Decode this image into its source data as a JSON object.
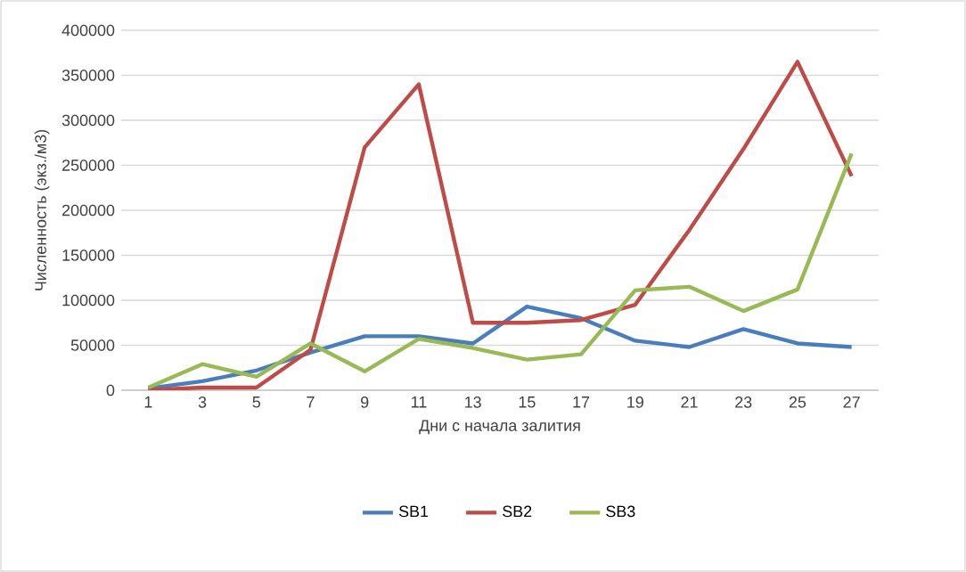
{
  "chart_data": {
    "type": "line",
    "xlabel": "Дни с начала залития",
    "ylabel": "Численность (экз./м3)",
    "categories": [
      "1",
      "3",
      "5",
      "7",
      "9",
      "11",
      "13",
      "15",
      "17",
      "19",
      "21",
      "23",
      "25",
      "27"
    ],
    "series": [
      {
        "name": "SB1",
        "color": "#4a7ebb",
        "values": [
          2000,
          10000,
          22000,
          42000,
          60000,
          60000,
          52000,
          93000,
          80000,
          55000,
          48000,
          68000,
          52000,
          48000
        ]
      },
      {
        "name": "SB2",
        "color": "#be4b48",
        "values": [
          0,
          3000,
          3000,
          45000,
          270000,
          340000,
          75000,
          75000,
          78000,
          95000,
          178000,
          268000,
          365000,
          238000
        ]
      },
      {
        "name": "SB3",
        "color": "#98b954",
        "values": [
          3000,
          29000,
          15000,
          52000,
          21000,
          57000,
          47000,
          34000,
          40000,
          111000,
          115000,
          88000,
          112000,
          263000
        ]
      }
    ],
    "ylim": [
      0,
      400000
    ],
    "yticks": [
      0,
      50000,
      100000,
      150000,
      200000,
      250000,
      300000,
      350000,
      400000
    ],
    "grid": "y",
    "legend": "bottom",
    "marker": "none",
    "line_style": "solid"
  }
}
